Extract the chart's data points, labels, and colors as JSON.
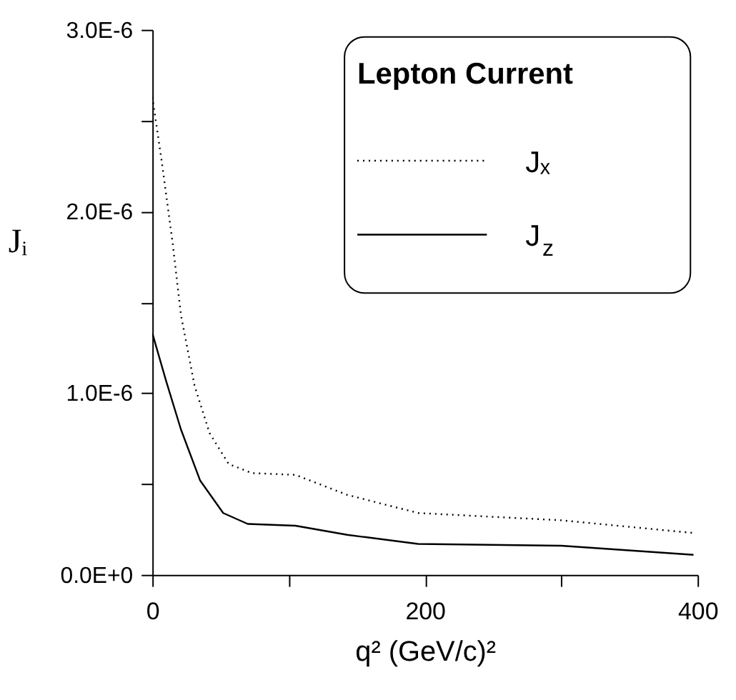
{
  "chart_data": {
    "type": "line",
    "xlabel": "q²  (GeV/c)²",
    "ylabel": "Jᵢ",
    "legend_title": "Lepton Current",
    "legend": "top right",
    "grid": false,
    "marker": "none",
    "xlim": [
      0,
      400
    ],
    "ylim": [
      0,
      3e-06
    ],
    "xticks": [
      0,
      {
        "value": 100,
        "label": null
      },
      200,
      {
        "value": 300,
        "label": null
      },
      400
    ],
    "yticks": [
      {
        "value": 0,
        "label": "0.0E+0"
      },
      {
        "value": 5e-07,
        "label": null
      },
      {
        "value": 1e-06,
        "label": "1.0E-6"
      },
      {
        "value": 1.5e-06,
        "label": null
      },
      {
        "value": 2e-06,
        "label": "2.0E-6"
      },
      {
        "value": 2.5e-06,
        "label": null
      },
      {
        "value": 3e-06,
        "label": "3.0E-6"
      }
    ],
    "series": [
      {
        "name": "Jₓ",
        "color": "#000000",
        "line_style": "dotted",
        "x": [
          0,
          7,
          15,
          21,
          31,
          42,
          56,
          73,
          105,
          143,
          195,
          300,
          397
        ],
        "values": [
          2.63e-06,
          2.27e-06,
          1.82e-06,
          1.43e-06,
          1.04e-06,
          7.8e-07,
          6.1e-07,
          5.6e-07,
          5.5e-07,
          4.4e-07,
          3.4e-07,
          3e-07,
          2.3e-07
        ]
      },
      {
        "name": "J$_{z}$",
        "color": "#000000",
        "line_style": "solid",
        "x": [
          0,
          10,
          21,
          35,
          52,
          70,
          105,
          143,
          195,
          300,
          397
        ],
        "values": [
          1.33e-06,
          1.07e-06,
          8e-07,
          5.2e-07,
          3.4e-07,
          2.8e-07,
          2.7e-07,
          2.2e-07,
          1.7e-07,
          1.6e-07,
          1.1e-07
        ]
      }
    ]
  }
}
